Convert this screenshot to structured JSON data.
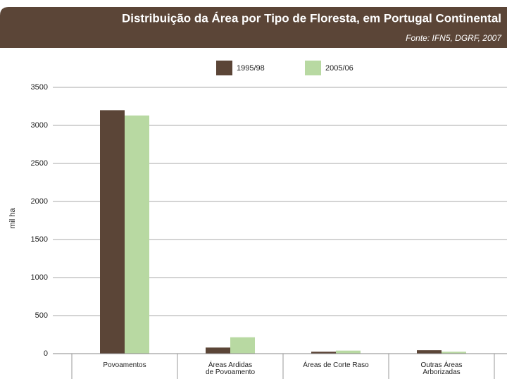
{
  "chart_data": {
    "type": "bar",
    "title": "Distribuição da Área por Tipo de Floresta, em Portugal Continental",
    "subtitle": "Fonte: IFN5, DGRF, 2007",
    "y_label": "mil ha",
    "categories": [
      "Povoamentos",
      "Áreas Ardidas\nde Povoamento",
      "Áreas de Corte Raso",
      "Outras Áreas\nArborizadas"
    ],
    "series": [
      {
        "name": "1995/98",
        "color": "#5b4537",
        "values": [
          3200,
          80,
          25,
          45
        ]
      },
      {
        "name": "2005/06",
        "color": "#b8d9a2",
        "values": [
          3130,
          215,
          40,
          25
        ]
      }
    ],
    "ylim": [
      0,
      3500
    ],
    "yticks": [
      0,
      500,
      1000,
      1500,
      2000,
      2500,
      3000,
      3500
    ],
    "grid": true,
    "legend": "top"
  }
}
